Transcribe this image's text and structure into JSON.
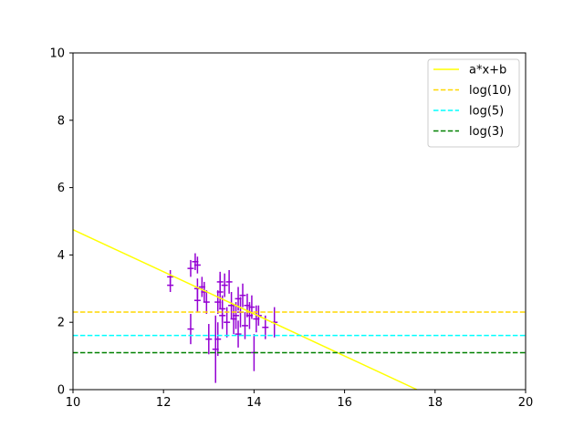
{
  "chart_data": {
    "type": "scatter",
    "title": "",
    "xlabel": "",
    "ylabel": "",
    "xlim": [
      10,
      20
    ],
    "ylim": [
      0,
      10
    ],
    "xticks": [
      10,
      12,
      14,
      16,
      18,
      20
    ],
    "yticks": [
      0,
      2,
      4,
      6,
      8,
      10
    ],
    "grid": false,
    "legend_position": "top-right",
    "points": {
      "color": "#9400d3",
      "data": [
        {
          "x": 12.15,
          "y": 3.35,
          "err": 0.2
        },
        {
          "x": 12.15,
          "y": 3.1,
          "err": 0.2
        },
        {
          "x": 12.6,
          "y": 3.6,
          "err": 0.25
        },
        {
          "x": 12.6,
          "y": 1.8,
          "err": 0.45
        },
        {
          "x": 12.7,
          "y": 3.8,
          "err": 0.25
        },
        {
          "x": 12.75,
          "y": 3.7,
          "err": 0.25
        },
        {
          "x": 12.75,
          "y": 3.0,
          "err": 0.3
        },
        {
          "x": 12.75,
          "y": 2.65,
          "err": 0.35
        },
        {
          "x": 12.85,
          "y": 3.05,
          "err": 0.3
        },
        {
          "x": 12.9,
          "y": 2.9,
          "err": 0.3
        },
        {
          "x": 12.95,
          "y": 2.6,
          "err": 0.35
        },
        {
          "x": 13.0,
          "y": 1.5,
          "err": 0.45
        },
        {
          "x": 13.15,
          "y": 1.2,
          "err": 1.0
        },
        {
          "x": 13.2,
          "y": 1.5,
          "err": 0.5
        },
        {
          "x": 13.2,
          "y": 2.6,
          "err": 0.35
        },
        {
          "x": 13.25,
          "y": 2.9,
          "err": 0.5
        },
        {
          "x": 13.25,
          "y": 3.2,
          "err": 0.3
        },
        {
          "x": 13.3,
          "y": 2.2,
          "err": 0.4
        },
        {
          "x": 13.3,
          "y": 2.4,
          "err": 0.4
        },
        {
          "x": 13.35,
          "y": 3.1,
          "err": 0.35
        },
        {
          "x": 13.4,
          "y": 2.0,
          "err": 0.45
        },
        {
          "x": 13.45,
          "y": 3.2,
          "err": 0.35
        },
        {
          "x": 13.5,
          "y": 2.5,
          "err": 0.4
        },
        {
          "x": 13.55,
          "y": 2.1,
          "err": 0.45
        },
        {
          "x": 13.6,
          "y": 2.2,
          "err": 0.4
        },
        {
          "x": 13.65,
          "y": 1.65,
          "err": 0.4
        },
        {
          "x": 13.65,
          "y": 2.7,
          "err": 0.35
        },
        {
          "x": 13.7,
          "y": 2.3,
          "err": 0.45
        },
        {
          "x": 13.75,
          "y": 2.8,
          "err": 0.35
        },
        {
          "x": 13.8,
          "y": 1.9,
          "err": 0.4
        },
        {
          "x": 13.85,
          "y": 2.5,
          "err": 0.35
        },
        {
          "x": 13.9,
          "y": 2.2,
          "err": 0.4
        },
        {
          "x": 13.95,
          "y": 2.45,
          "err": 0.35
        },
        {
          "x": 14.0,
          "y": 1.1,
          "err": 0.55
        },
        {
          "x": 14.05,
          "y": 2.1,
          "err": 0.4
        },
        {
          "x": 14.1,
          "y": 2.2,
          "err": 0.3
        },
        {
          "x": 14.25,
          "y": 1.85,
          "err": 0.35
        },
        {
          "x": 14.45,
          "y": 2.0,
          "err": 0.45
        }
      ]
    },
    "series": [
      {
        "name": "a*x+b",
        "style": "solid",
        "color": "#ffff00",
        "x": [
          10,
          17.6
        ],
        "y": [
          4.75,
          0
        ]
      },
      {
        "name": "log(10)",
        "style": "dashed",
        "color": "#ffd700",
        "x": [
          10,
          20
        ],
        "y": [
          2.302585,
          2.302585
        ]
      },
      {
        "name": "log(5)",
        "style": "dashed",
        "color": "#00ffff",
        "x": [
          10,
          20
        ],
        "y": [
          1.609438,
          1.609438
        ]
      },
      {
        "name": "log(3)",
        "style": "dashed",
        "color": "#008000",
        "x": [
          10,
          20
        ],
        "y": [
          1.098612,
          1.098612
        ]
      }
    ]
  }
}
